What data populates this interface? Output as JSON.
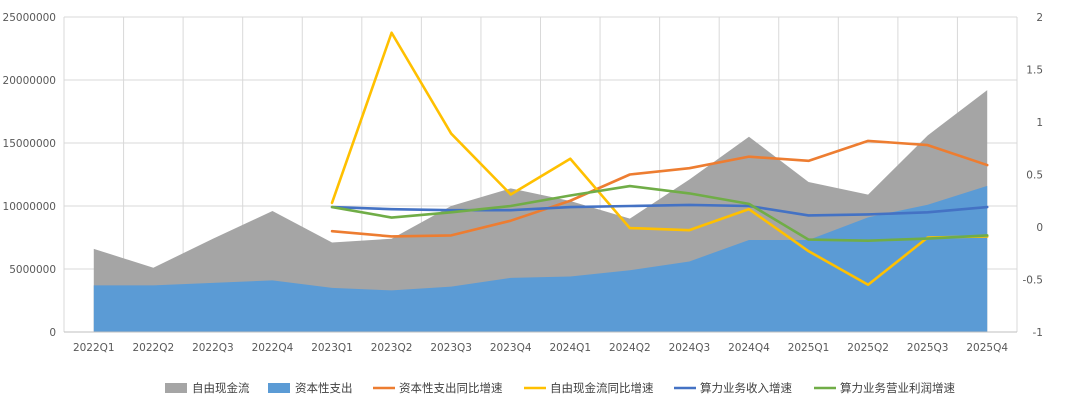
{
  "chart_data": {
    "type": "area",
    "categories": [
      "2022Q1",
      "2022Q2",
      "2022Q3",
      "2022Q4",
      "2023Q1",
      "2023Q2",
      "2023Q3",
      "2023Q4",
      "2024Q1",
      "2024Q2",
      "2024Q3",
      "2024Q4",
      "2025Q1",
      "2025Q2",
      "2025Q3",
      "2025Q4"
    ],
    "left_axis": {
      "ylim": [
        0,
        25000000
      ],
      "ticks": [
        "0",
        "5000000",
        "10000000",
        "15000000",
        "20000000",
        "25000000"
      ]
    },
    "right_axis": {
      "ylim": [
        -1,
        2
      ],
      "ticks": [
        "-1",
        "-0.5",
        "0",
        "0.5",
        "1",
        "1.5",
        "2"
      ]
    },
    "grid": true,
    "legend_position": "bottom",
    "area_series": [
      {
        "name": "自由现金流",
        "color": "#a5a5a5",
        "values": [
          6600000,
          5100000,
          7400000,
          9600000,
          7100000,
          7400000,
          10000000,
          11400000,
          10400000,
          9000000,
          12100000,
          15500000,
          11900000,
          10900000,
          15600000,
          19200000
        ]
      },
      {
        "name": "资本性支出",
        "color": "#5b9bd5",
        "values": [
          3700000,
          3700000,
          3900000,
          4100000,
          3500000,
          3300000,
          3600000,
          4300000,
          4400000,
          4900000,
          5600000,
          7300000,
          7300000,
          9100000,
          10100000,
          11600000
        ]
      }
    ],
    "line_series": [
      {
        "name": "资本性支出同比增速",
        "color": "#ed7d31",
        "values": [
          null,
          null,
          null,
          null,
          -0.04,
          -0.09,
          -0.08,
          0.06,
          0.25,
          0.5,
          0.56,
          0.67,
          0.63,
          0.82,
          0.78,
          0.59
        ]
      },
      {
        "name": "自由现金流同比增速",
        "color": "#ffc000",
        "values": [
          null,
          null,
          null,
          null,
          0.23,
          1.85,
          0.89,
          0.31,
          0.65,
          -0.01,
          -0.03,
          0.17,
          -0.23,
          -0.55,
          -0.1,
          -0.09
        ]
      },
      {
        "name": "算力业务收入增速",
        "color": "#4472c4",
        "values": [
          null,
          null,
          null,
          null,
          0.19,
          0.17,
          0.16,
          0.16,
          0.19,
          0.2,
          0.21,
          0.2,
          0.11,
          0.12,
          0.14,
          0.19
        ]
      },
      {
        "name": "算力业务营业利润增速",
        "color": "#70ad47",
        "values": [
          null,
          null,
          null,
          null,
          0.19,
          0.09,
          0.14,
          0.2,
          0.3,
          0.39,
          0.32,
          0.22,
          -0.12,
          -0.13,
          -0.11,
          -0.08
        ]
      }
    ]
  }
}
